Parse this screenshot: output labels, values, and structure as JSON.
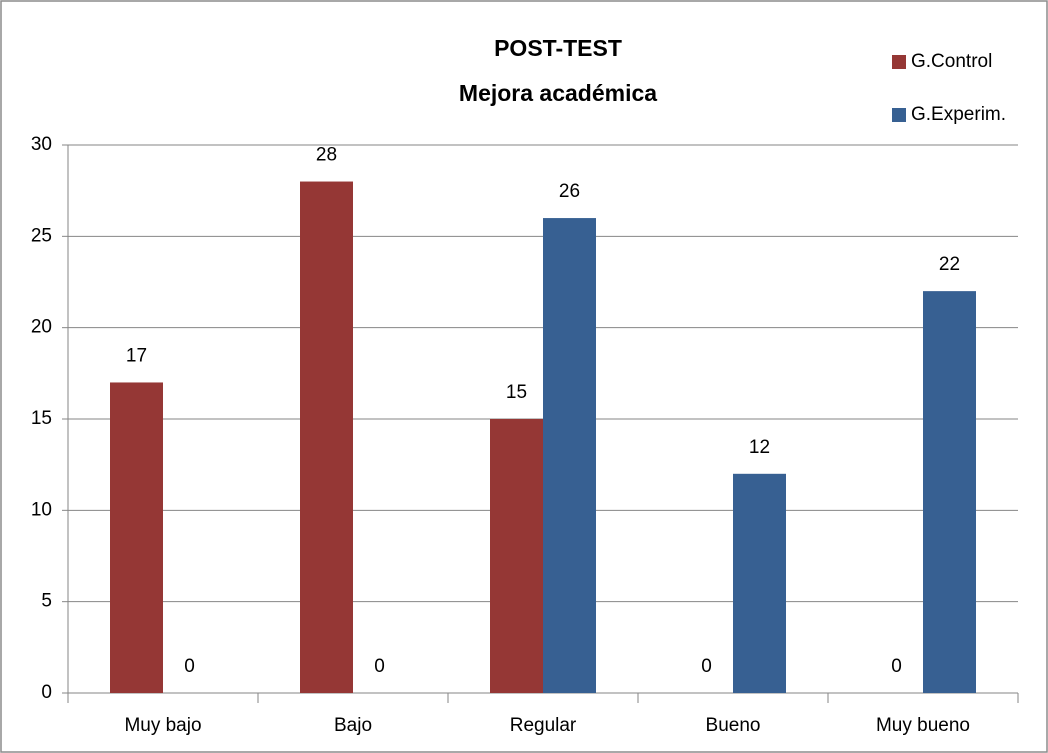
{
  "chart_data": {
    "type": "bar",
    "title": "POST-TEST",
    "subtitle": "Mejora académica",
    "categories": [
      "Muy bajo",
      "Bajo",
      "Regular",
      "Bueno",
      "Muy bueno"
    ],
    "series": [
      {
        "name": "G.Control",
        "color": "#953735",
        "values": [
          17,
          28,
          15,
          0,
          0
        ]
      },
      {
        "name": "G.Experim.",
        "color": "#376092",
        "values": [
          0,
          0,
          26,
          12,
          22
        ]
      }
    ],
    "ylim": [
      0,
      30
    ],
    "yticks": [
      0,
      5,
      10,
      15,
      20,
      25,
      30
    ],
    "grid": true,
    "legend": "top-right"
  }
}
